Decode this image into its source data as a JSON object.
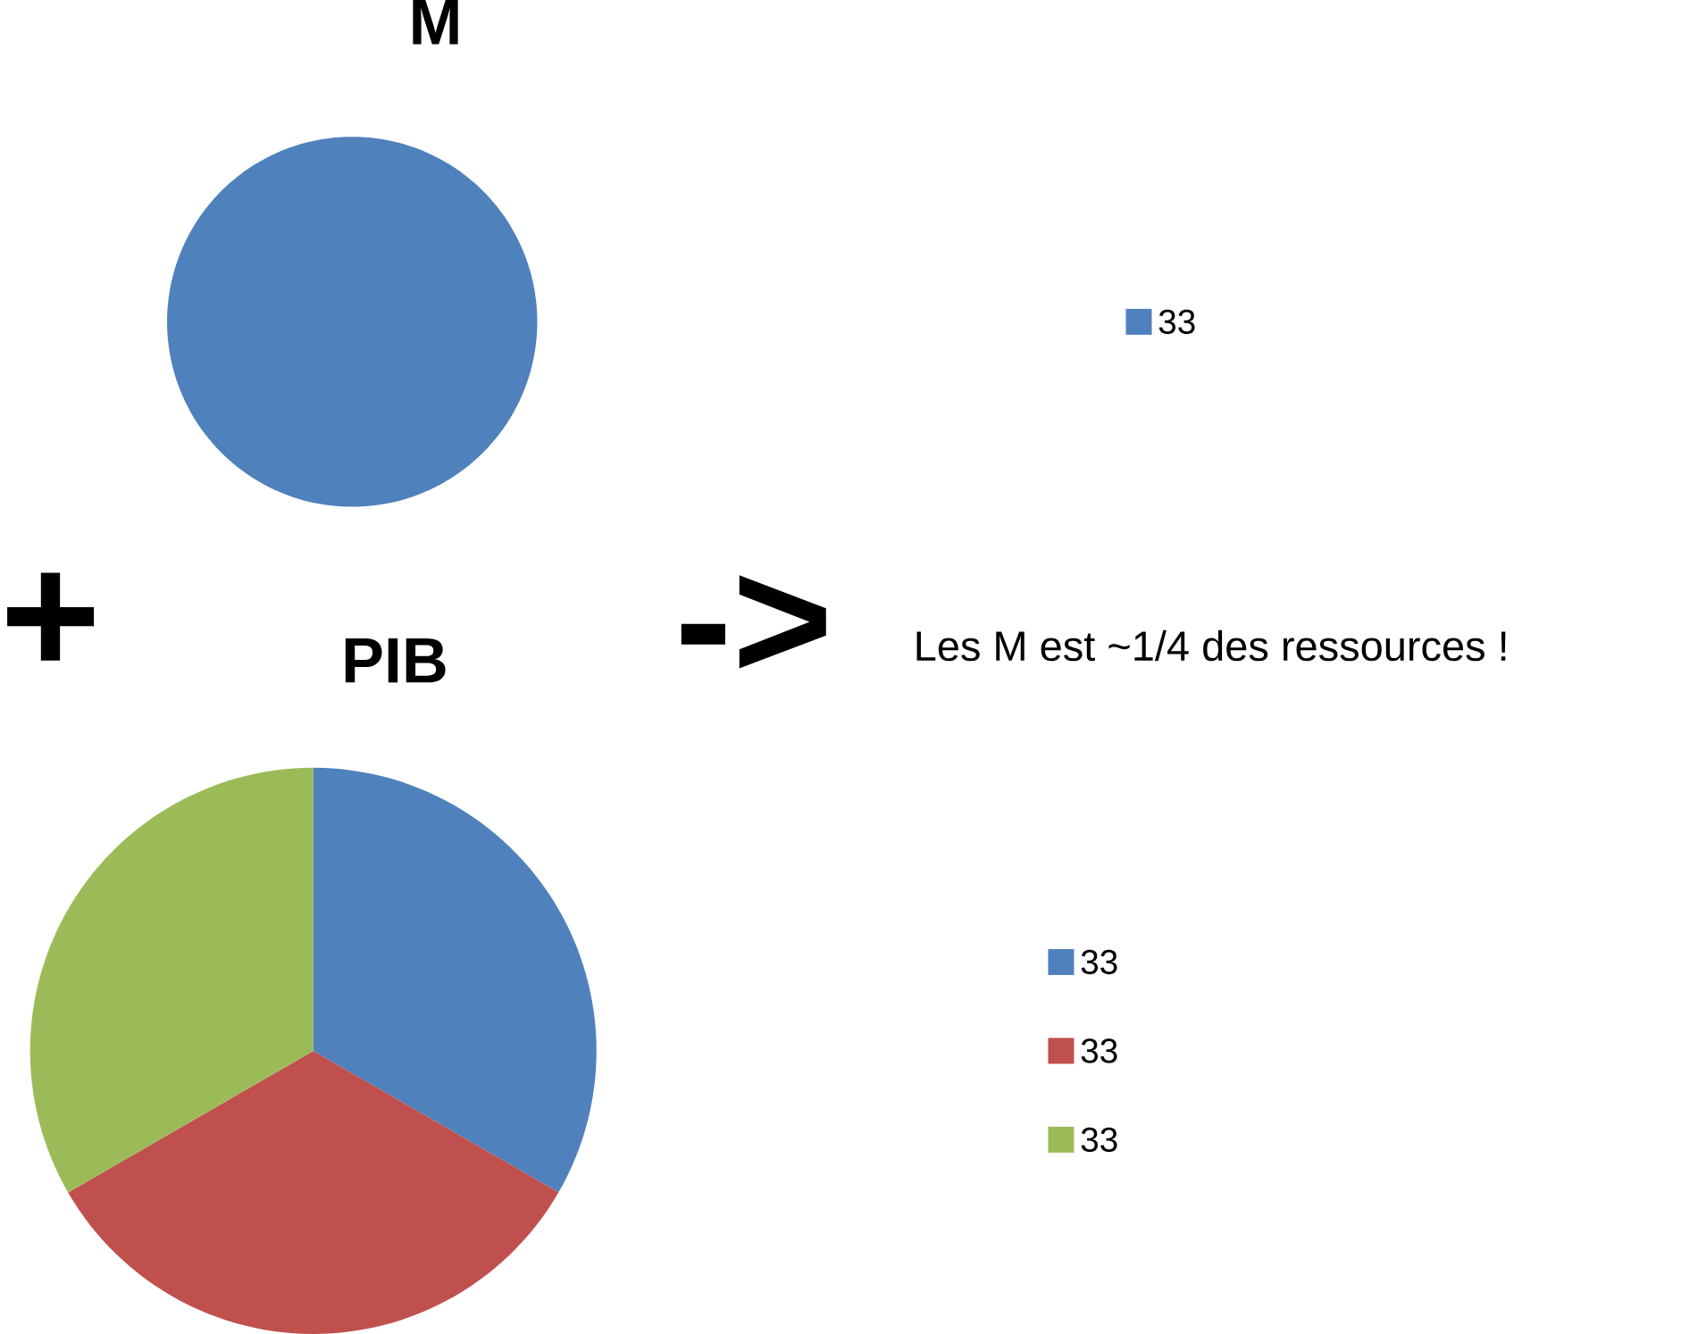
{
  "chart_data": [
    {
      "type": "pie",
      "title": "M",
      "categories": [
        "33"
      ],
      "values": [
        100
      ],
      "colors": [
        "#4f81bd"
      ],
      "legend": "right"
    },
    {
      "type": "pie",
      "title": "PIB",
      "categories": [
        "33",
        "33",
        "33"
      ],
      "values": [
        33.33,
        33.33,
        33.34
      ],
      "colors": [
        "#4f81bd",
        "#c0504d",
        "#9bbb59"
      ],
      "legend": "right",
      "annotations": [
        "+",
        "->",
        "Les M est ~1/4 des ressources !"
      ]
    }
  ]
}
